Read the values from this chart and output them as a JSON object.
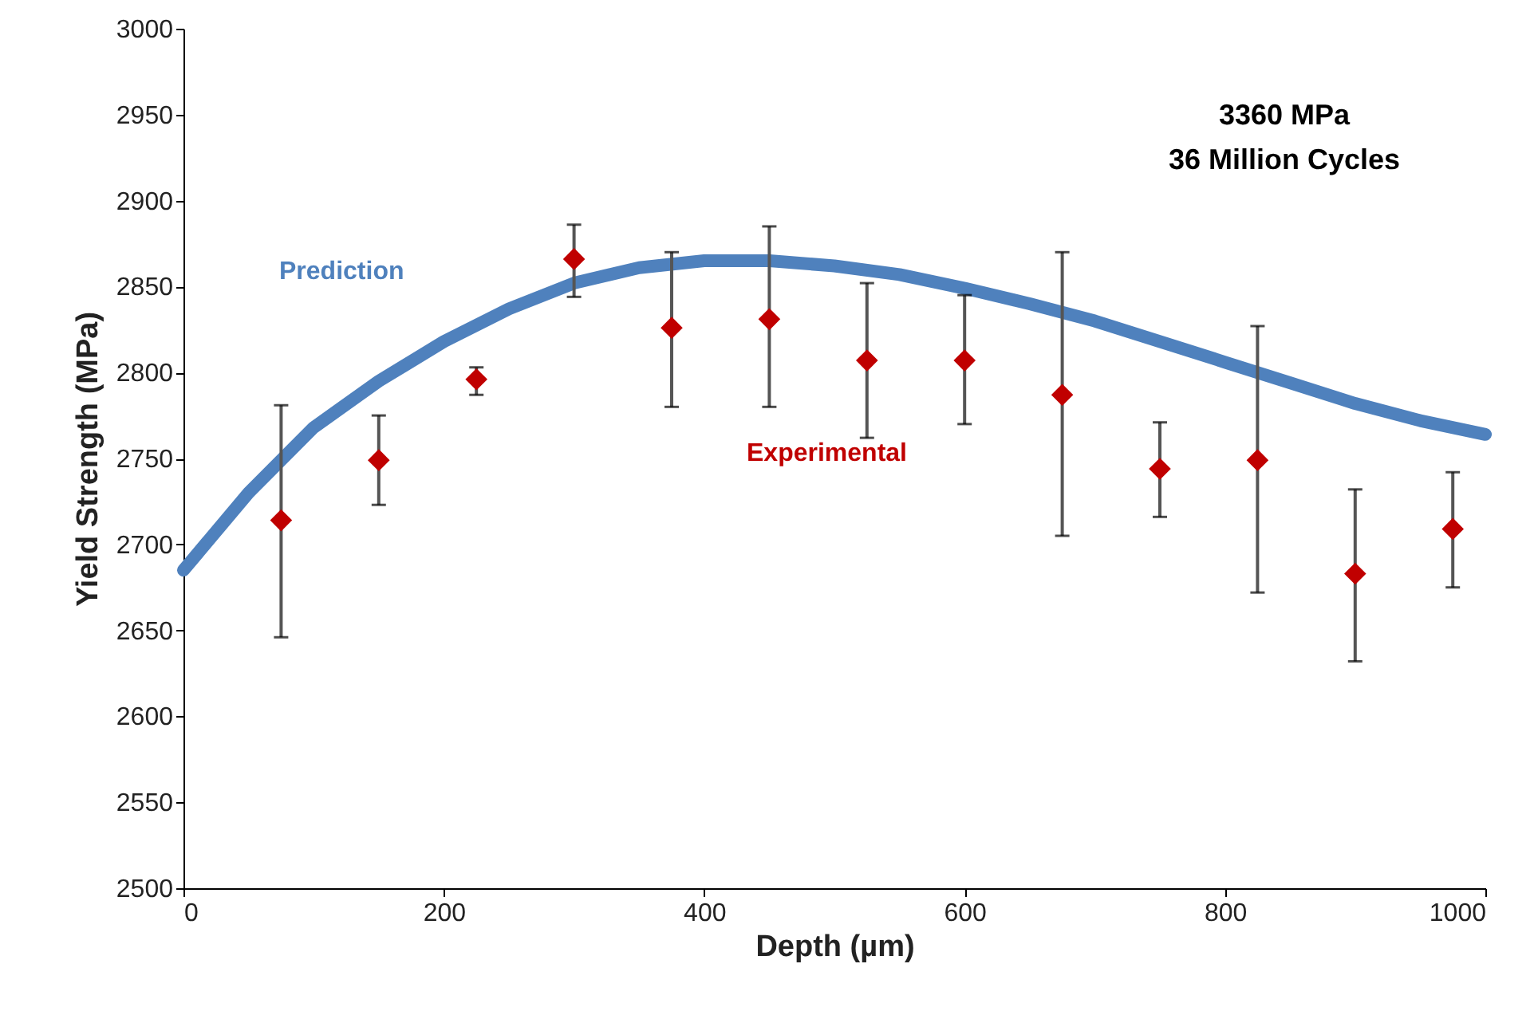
{
  "chart_data": {
    "type": "line",
    "xlabel": "Depth (µm)",
    "ylabel": "Yield Strength (MPa)",
    "xlim": [
      0,
      1000
    ],
    "xticks": [
      0,
      200,
      400,
      600,
      800,
      1000
    ],
    "ylim": [
      2500,
      3000
    ],
    "yticks": [
      2500,
      2550,
      2600,
      2650,
      2700,
      2750,
      2800,
      2850,
      2900,
      2950,
      3000
    ],
    "grid": false,
    "legend": false,
    "annotations": [
      "3360 MPa",
      "36 Million Cycles"
    ],
    "series": [
      {
        "name": "Prediction",
        "color": "#4f81bd",
        "marker": "none",
        "x": [
          0,
          50,
          100,
          150,
          200,
          250,
          300,
          350,
          400,
          450,
          500,
          550,
          600,
          650,
          700,
          750,
          800,
          850,
          900,
          950,
          1000
        ],
        "values": [
          2685,
          2730,
          2768,
          2795,
          2818,
          2837,
          2852,
          2861,
          2865,
          2865,
          2862,
          2857,
          2849,
          2840,
          2830,
          2818,
          2806,
          2794,
          2782,
          2772,
          2764
        ]
      },
      {
        "name": "Experimental",
        "type": "scatter",
        "color": "#c00000",
        "marker": "diamond",
        "x": [
          75,
          150,
          225,
          300,
          375,
          450,
          525,
          600,
          675,
          750,
          825,
          900,
          975
        ],
        "values": [
          2714,
          2749,
          2796,
          2866,
          2826,
          2831,
          2807,
          2807,
          2787,
          2744,
          2749,
          2683,
          2709
        ],
        "errors": [
          [
            2646,
            2781
          ],
          [
            2723,
            2775
          ],
          [
            2787,
            2803
          ],
          [
            2844,
            2886
          ],
          [
            2780,
            2870
          ],
          [
            2780,
            2885
          ],
          [
            2762,
            2852
          ],
          [
            2770,
            2845
          ],
          [
            2705,
            2870
          ],
          [
            2716,
            2771
          ],
          [
            2672,
            2827
          ],
          [
            2632,
            2732
          ],
          [
            2675,
            2742
          ]
        ]
      }
    ]
  }
}
